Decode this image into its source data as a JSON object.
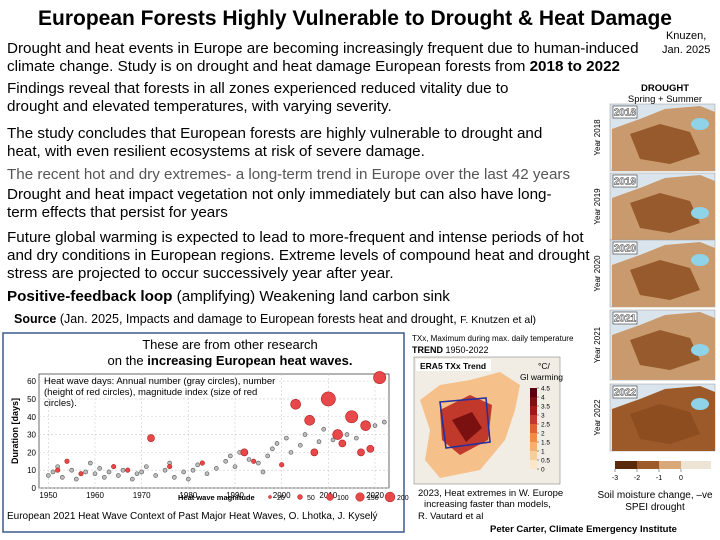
{
  "header": {
    "title": "European Forests Highly Vulnerable to Drought & Heat Damage",
    "note": [
      "Knuzen,",
      "Jan. 2025"
    ]
  },
  "paragraphs": [
    {
      "text": "Drought and heat events in Europe are becoming increasingly frequent due to human-induced climate change. Study is on drought and heat damage European forests from ",
      "bold": "2018 to 2022"
    },
    {
      "text": "Findings reveal that forests in all zones experienced reduced vitality due to drought and elevated temperatures, with varying severity."
    },
    {
      "text": "The study concludes that European forests are highly vulnerable to drought and heat, with even resilient ecosystems at risk of severe damage."
    },
    {
      "text": "The recent hot and dry extremes- a long-term trend in Europe over the last 42 years"
    },
    {
      "text": "Drought and heat impact vegetation not only immediately but can also have long-term effects that persist for years"
    },
    {
      "text": "Future global warming is expected to lead to more-frequent and intense periods of hot and dry conditions in European regions. Extreme levels of compound heat and drought stress are projected to occur successively year after year."
    },
    {
      "bold": "Positive-feedback loop",
      "text": "(amplifying) Weakening land carbon sink"
    }
  ],
  "source": {
    "label": "Source",
    "text": "(Jan. 2025, Impacts and damage to European forests heat and drought,",
    "authors": "F. Knutzen et al)"
  },
  "heatwaves": {
    "heading": "These are from other research",
    "subheading": "on the",
    "subheading_bold": "increasing European heat waves.",
    "chart": {
      "type": "scatter",
      "annotation": "Heat wave days: Annual number (gray circles), number (height of red circles), magnitude index (size of red circles).",
      "ylabel": "Duration [days]",
      "xlim": [
        1948,
        2023
      ],
      "ylim": [
        0,
        64
      ],
      "xticks": [
        1950,
        1960,
        1970,
        1980,
        1990,
        2000,
        2010,
        2020
      ],
      "yticks": [
        0,
        10,
        20,
        30,
        40,
        50,
        60
      ],
      "grid": true,
      "series": [
        {
          "color": "#bdbdbd",
          "x": [
            1950,
            1951,
            1952,
            1953,
            1955,
            1956,
            1958,
            1959,
            1960,
            1961,
            1962,
            1963,
            1965,
            1966,
            1968,
            1969,
            1970,
            1971,
            1973,
            1975,
            1976,
            1977,
            1979,
            1980,
            1981,
            1982,
            1984,
            1986,
            1988,
            1989,
            1990,
            1991,
            1993,
            1995,
            1996,
            1997,
            1998,
            1999,
            2001,
            2002,
            2004,
            2005,
            2008,
            2009,
            2011,
            2014,
            2016,
            2020,
            2022
          ],
          "values": [
            7,
            9,
            12,
            6,
            10,
            5,
            9,
            14,
            8,
            11,
            6,
            9,
            7,
            10,
            5,
            8,
            9,
            12,
            7,
            10,
            14,
            6,
            9,
            5,
            10,
            13,
            8,
            11,
            15,
            18,
            12,
            20,
            16,
            14,
            9,
            18,
            22,
            25,
            28,
            20,
            24,
            30,
            26,
            33,
            27,
            30,
            28,
            35,
            37
          ]
        },
        {
          "color": "#e8484a",
          "x": [
            1952,
            1954,
            1957,
            1964,
            1967,
            1972,
            1976,
            1983,
            1992,
            1994,
            2000,
            2003,
            2006,
            2007,
            2010,
            2012,
            2013,
            2015,
            2017,
            2018,
            2019,
            2021
          ],
          "values": [
            10,
            15,
            8,
            12,
            10,
            28,
            12,
            14,
            20,
            15,
            13,
            47,
            38,
            20,
            50,
            30,
            25,
            40,
            20,
            35,
            22,
            62
          ],
          "sizes": [
            20,
            20,
            20,
            20,
            20,
            50,
            20,
            20,
            50,
            20,
            20,
            100,
            100,
            50,
            200,
            100,
            50,
            150,
            50,
            100,
            50,
            150
          ]
        }
      ],
      "size_legend": {
        "title": "Heat wave magnitude",
        "values": [
          20,
          50,
          100,
          150,
          200
        ]
      }
    },
    "caption": "European 2021 Heat Wave Context of Past Major Heat Waves, O. Lhotka, J. Kyselý"
  },
  "trend_map": {
    "note": "TXx, Maximum during max. daily temperature",
    "trend_label": "TREND",
    "trend_years": "1950-2022",
    "title": "ERA5 TXx Trend",
    "unit": [
      "°C/",
      "Gl warming"
    ],
    "colorbar_ticks": [
      4.5,
      4,
      3.5,
      3,
      2.5,
      2,
      1.5,
      1,
      0.5,
      0
    ],
    "caption": [
      "2023, Heat extremes in W. Europe",
      "increasing faster than models,",
      "R. Vautard et al"
    ]
  },
  "drought_maps": {
    "title": "DROUGHT",
    "subtitle": "Spring + Summer",
    "panels": [
      {
        "year": "2018",
        "label": "Year 2018"
      },
      {
        "year": "2019",
        "label": "Year 2019"
      },
      {
        "year": "2020",
        "label": "Year 2020"
      },
      {
        "year": "2021",
        "label": "Year 2021"
      },
      {
        "year": "2022",
        "label": "Year 2022"
      }
    ],
    "colorbar_ticks": [
      -3,
      -2,
      -1,
      0
    ],
    "caption": [
      "Soil moisture change, –ve",
      "SPEI drought"
    ]
  },
  "credit": "Peter Carter, Climate Emergency Institute"
}
